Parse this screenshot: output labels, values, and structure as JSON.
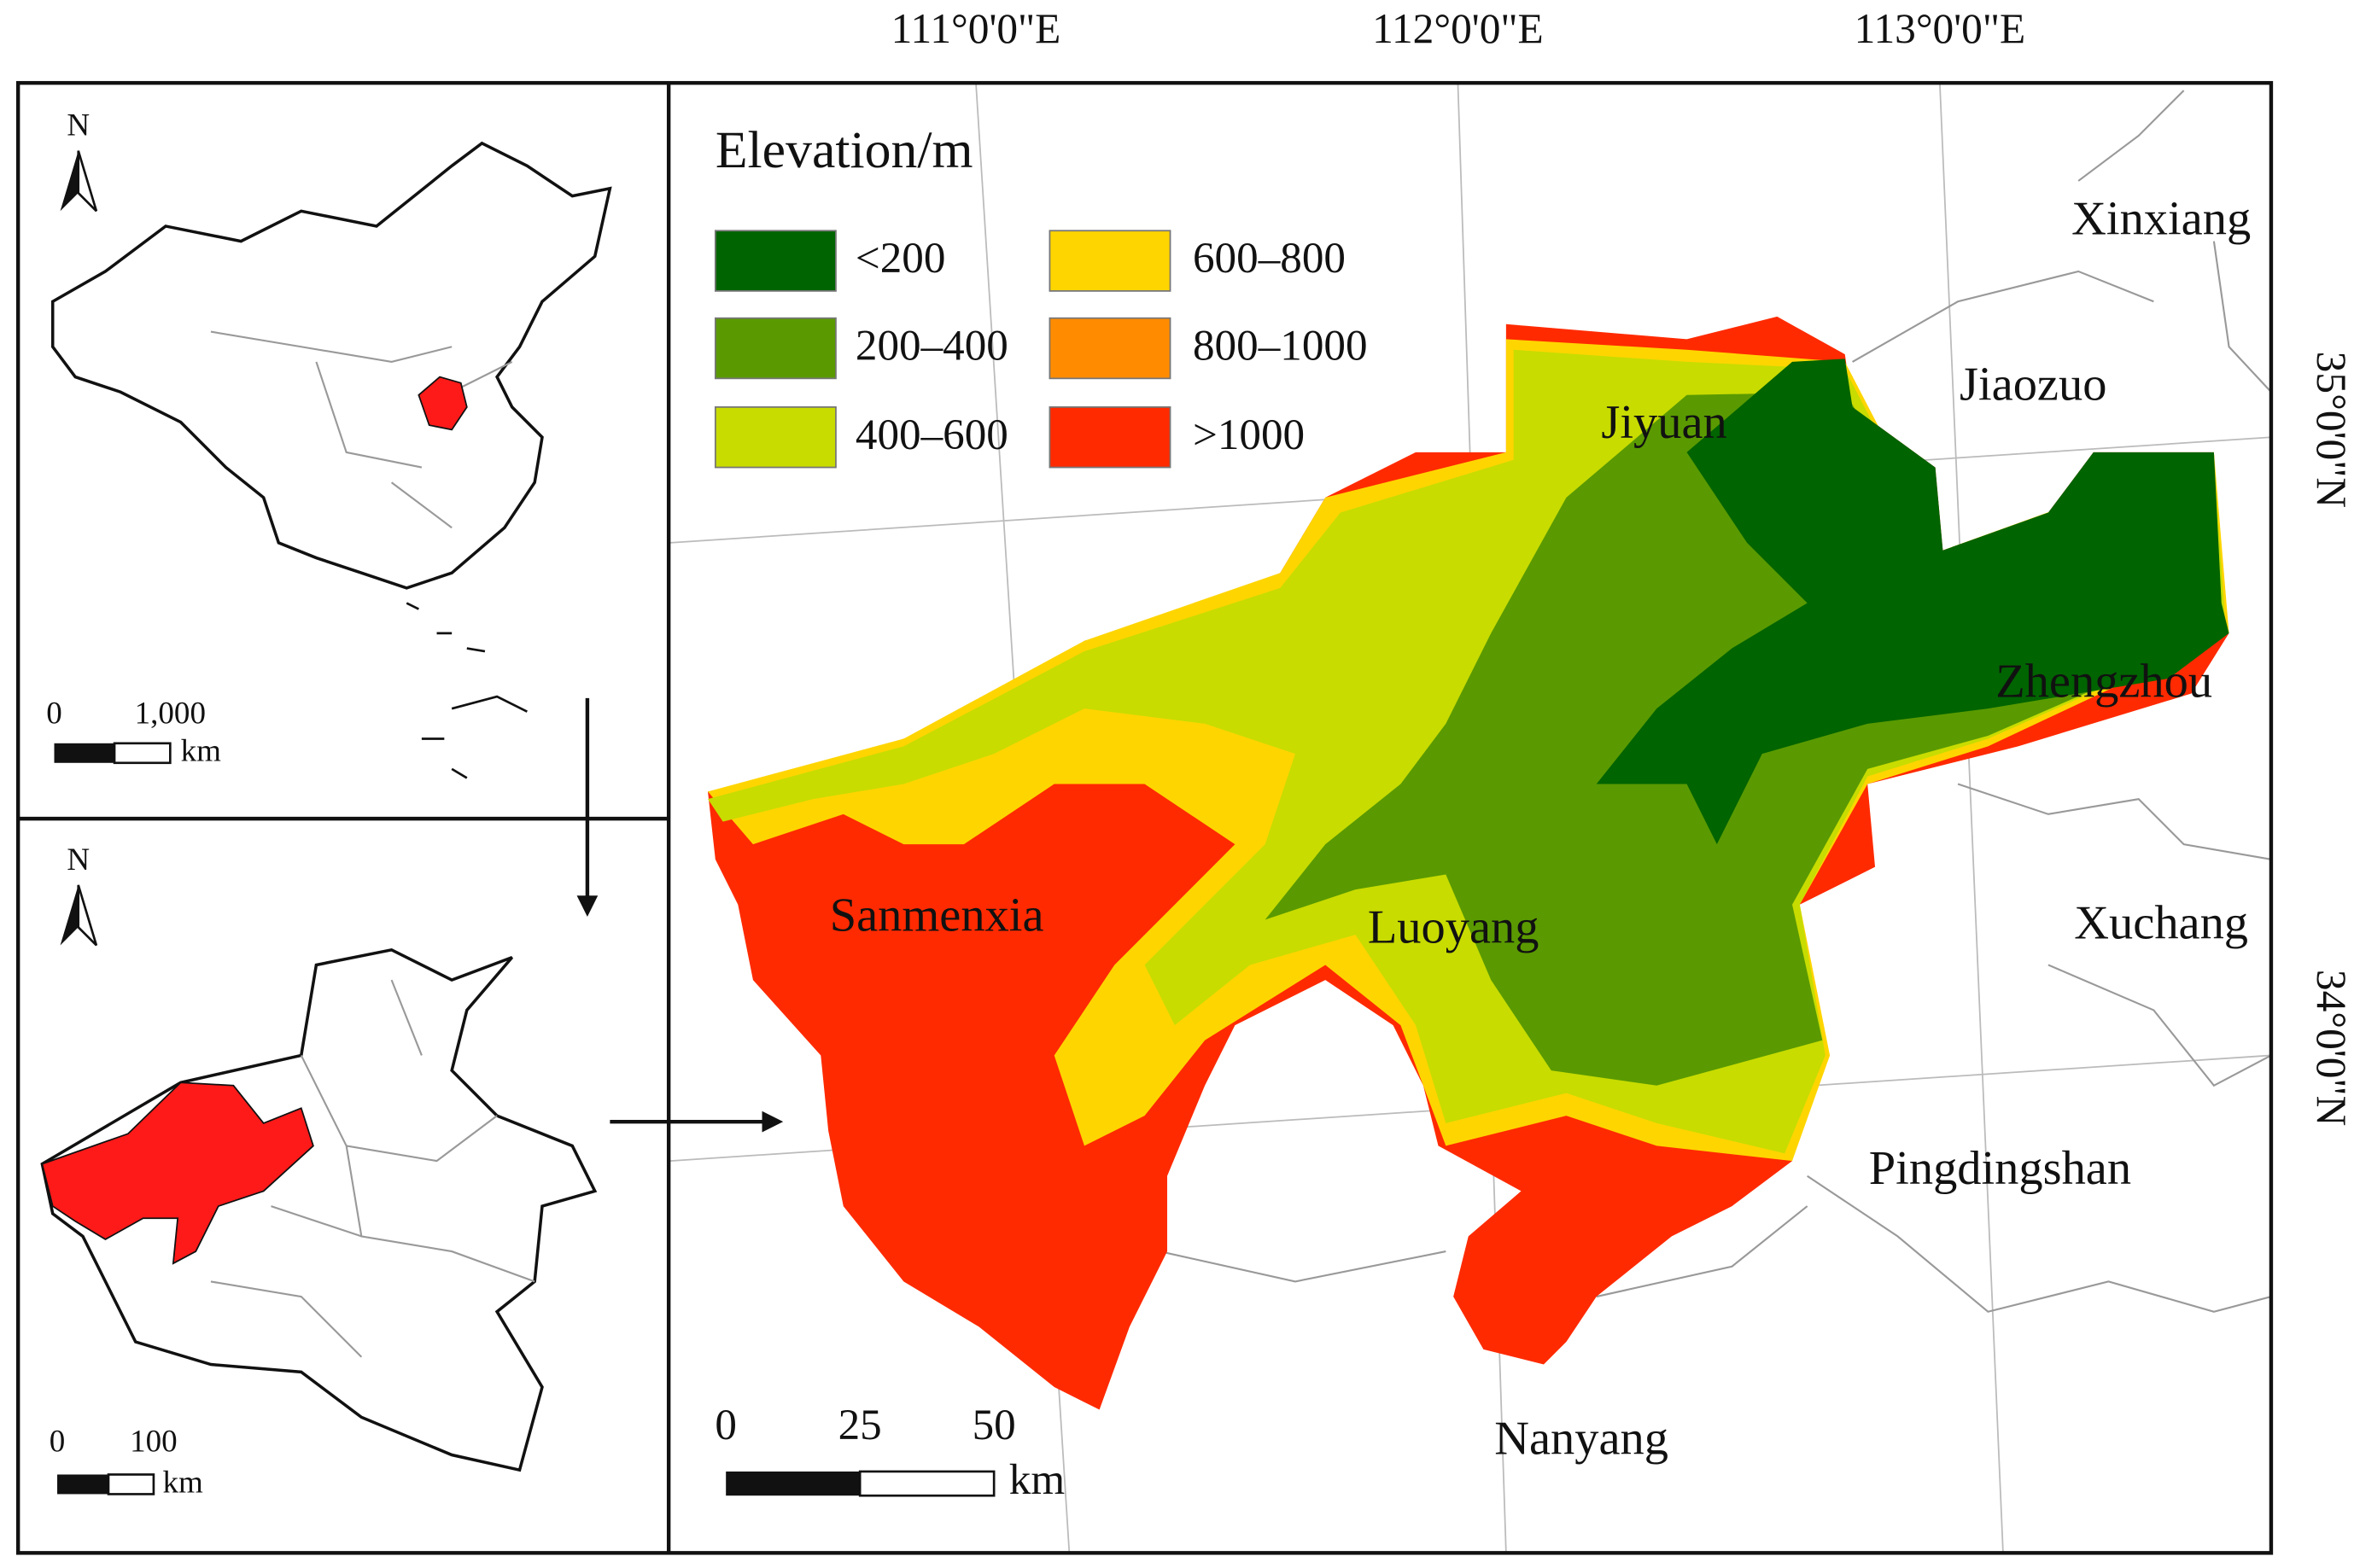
{
  "map": {
    "graticule_top": [
      "111°0'0\"E",
      "112°0'0\"E",
      "113°0'0\"E"
    ],
    "graticule_right": [
      "35°0'0\"N",
      "34°0'0\"N"
    ],
    "legend": {
      "title": "Elevation/m",
      "items": [
        "<200",
        "200–400",
        "400–600",
        "600–800",
        "800–1000",
        ">1000"
      ]
    },
    "cities": [
      "Xinxiang",
      "Jiaozuo",
      "Jiyuan",
      "Zhengzhou",
      "Xuchang",
      "Luoyang",
      "Sanmenxia",
      "Pingdingshan",
      "Nanyang"
    ],
    "scale_main": {
      "labels": [
        "0",
        "25",
        "50"
      ],
      "unit": "km"
    },
    "inset_china": {
      "north": "N",
      "scale_labels": [
        "0",
        "1,000"
      ],
      "unit": "km"
    },
    "inset_henan": {
      "north": "N",
      "scale_labels": [
        "0",
        "100"
      ],
      "unit": "km"
    }
  }
}
